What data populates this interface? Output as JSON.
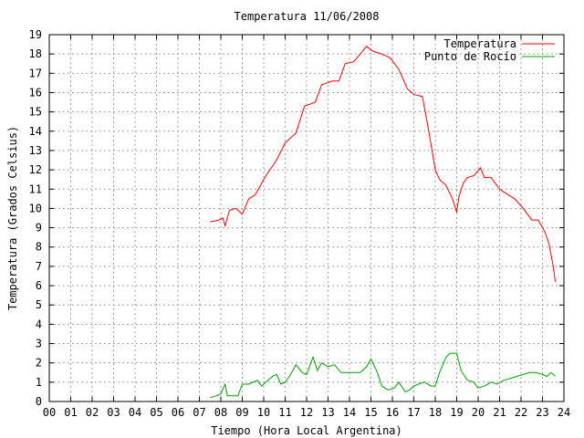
{
  "chart_data": {
    "type": "line",
    "title": "Temperatura 11/06/2008",
    "xlabel": "Tiempo (Hora Local Argentina)",
    "ylabel": "Temperatura (Grados Celsius)",
    "xlim": [
      0,
      24
    ],
    "ylim": [
      0,
      19
    ],
    "xticks": [
      0,
      1,
      2,
      3,
      4,
      5,
      6,
      7,
      8,
      9,
      10,
      11,
      12,
      13,
      14,
      15,
      16,
      17,
      18,
      19,
      20,
      21,
      22,
      23,
      24
    ],
    "xtick_labels": [
      "00",
      "01",
      "02",
      "03",
      "04",
      "05",
      "06",
      "07",
      "08",
      "09",
      "10",
      "11",
      "12",
      "13",
      "14",
      "15",
      "16",
      "17",
      "18",
      "19",
      "20",
      "21",
      "22",
      "23",
      "24"
    ],
    "yticks": [
      0,
      1,
      2,
      3,
      4,
      5,
      6,
      7,
      8,
      9,
      10,
      11,
      12,
      13,
      14,
      15,
      16,
      17,
      18,
      19
    ],
    "grid": true,
    "legend_position": "top-right",
    "series": [
      {
        "name": "Temperatura",
        "color": "#ff0000",
        "x": [
          7.5,
          7.9,
          8.1,
          8.2,
          8.4,
          8.7,
          9.0,
          9.3,
          9.6,
          10.1,
          10.6,
          11.0,
          11.5,
          11.9,
          12.4,
          12.7,
          13.2,
          13.5,
          13.8,
          14.2,
          14.8,
          15.0,
          15.2,
          15.5,
          15.9,
          16.3,
          16.7,
          17.0,
          17.4,
          17.7,
          18.0,
          18.2,
          18.5,
          18.8,
          19.0,
          19.1,
          19.3,
          19.5,
          19.8,
          20.1,
          20.3,
          20.6,
          21.0,
          21.4,
          21.7,
          22.1,
          22.5,
          22.8,
          23.1,
          23.3,
          23.5,
          23.6
        ],
        "y": [
          9.3,
          9.4,
          9.5,
          9.1,
          9.9,
          10.0,
          9.7,
          10.5,
          10.7,
          11.7,
          12.5,
          13.4,
          13.9,
          15.3,
          15.5,
          16.4,
          16.6,
          16.6,
          17.5,
          17.6,
          18.4,
          18.2,
          18.1,
          18.0,
          17.8,
          17.2,
          16.2,
          15.9,
          15.8,
          14.0,
          12.0,
          11.5,
          11.2,
          10.5,
          9.8,
          10.6,
          11.3,
          11.6,
          11.7,
          12.1,
          11.6,
          11.6,
          11.0,
          10.7,
          10.5,
          10.0,
          9.4,
          9.4,
          8.8,
          8.2,
          7.0,
          6.2
        ]
      },
      {
        "name": "Punto de Rocío",
        "color": "#00a000",
        "x": [
          7.5,
          7.8,
          8.0,
          8.2,
          8.3,
          8.6,
          8.8,
          9.0,
          9.3,
          9.5,
          9.7,
          9.9,
          10.1,
          10.4,
          10.6,
          10.8,
          11.0,
          11.2,
          11.5,
          11.8,
          12.0,
          12.3,
          12.5,
          12.7,
          13.0,
          13.3,
          13.6,
          14.0,
          14.5,
          14.8,
          15.0,
          15.3,
          15.5,
          15.8,
          16.1,
          16.3,
          16.6,
          16.8,
          17.0,
          17.2,
          17.5,
          17.8,
          18.0,
          18.2,
          18.5,
          18.7,
          19.0,
          19.2,
          19.5,
          19.8,
          20.0,
          20.3,
          20.6,
          20.9,
          21.2,
          21.5,
          21.8,
          22.1,
          22.4,
          22.7,
          23.0,
          23.2,
          23.4,
          23.6
        ],
        "y": [
          0.2,
          0.3,
          0.4,
          0.9,
          0.3,
          0.3,
          0.3,
          0.9,
          0.9,
          1.0,
          1.1,
          0.8,
          1.0,
          1.3,
          1.4,
          0.9,
          1.0,
          1.3,
          1.9,
          1.5,
          1.4,
          2.3,
          1.6,
          2.0,
          1.8,
          1.9,
          1.5,
          1.5,
          1.5,
          1.8,
          2.2,
          1.5,
          0.8,
          0.6,
          0.7,
          1.0,
          0.5,
          0.6,
          0.8,
          0.9,
          1.0,
          0.8,
          0.8,
          1.5,
          2.3,
          2.5,
          2.5,
          1.6,
          1.1,
          1.0,
          0.7,
          0.8,
          1.0,
          0.9,
          1.1,
          1.2,
          1.3,
          1.4,
          1.5,
          1.5,
          1.4,
          1.3,
          1.5,
          1.3
        ]
      }
    ]
  }
}
